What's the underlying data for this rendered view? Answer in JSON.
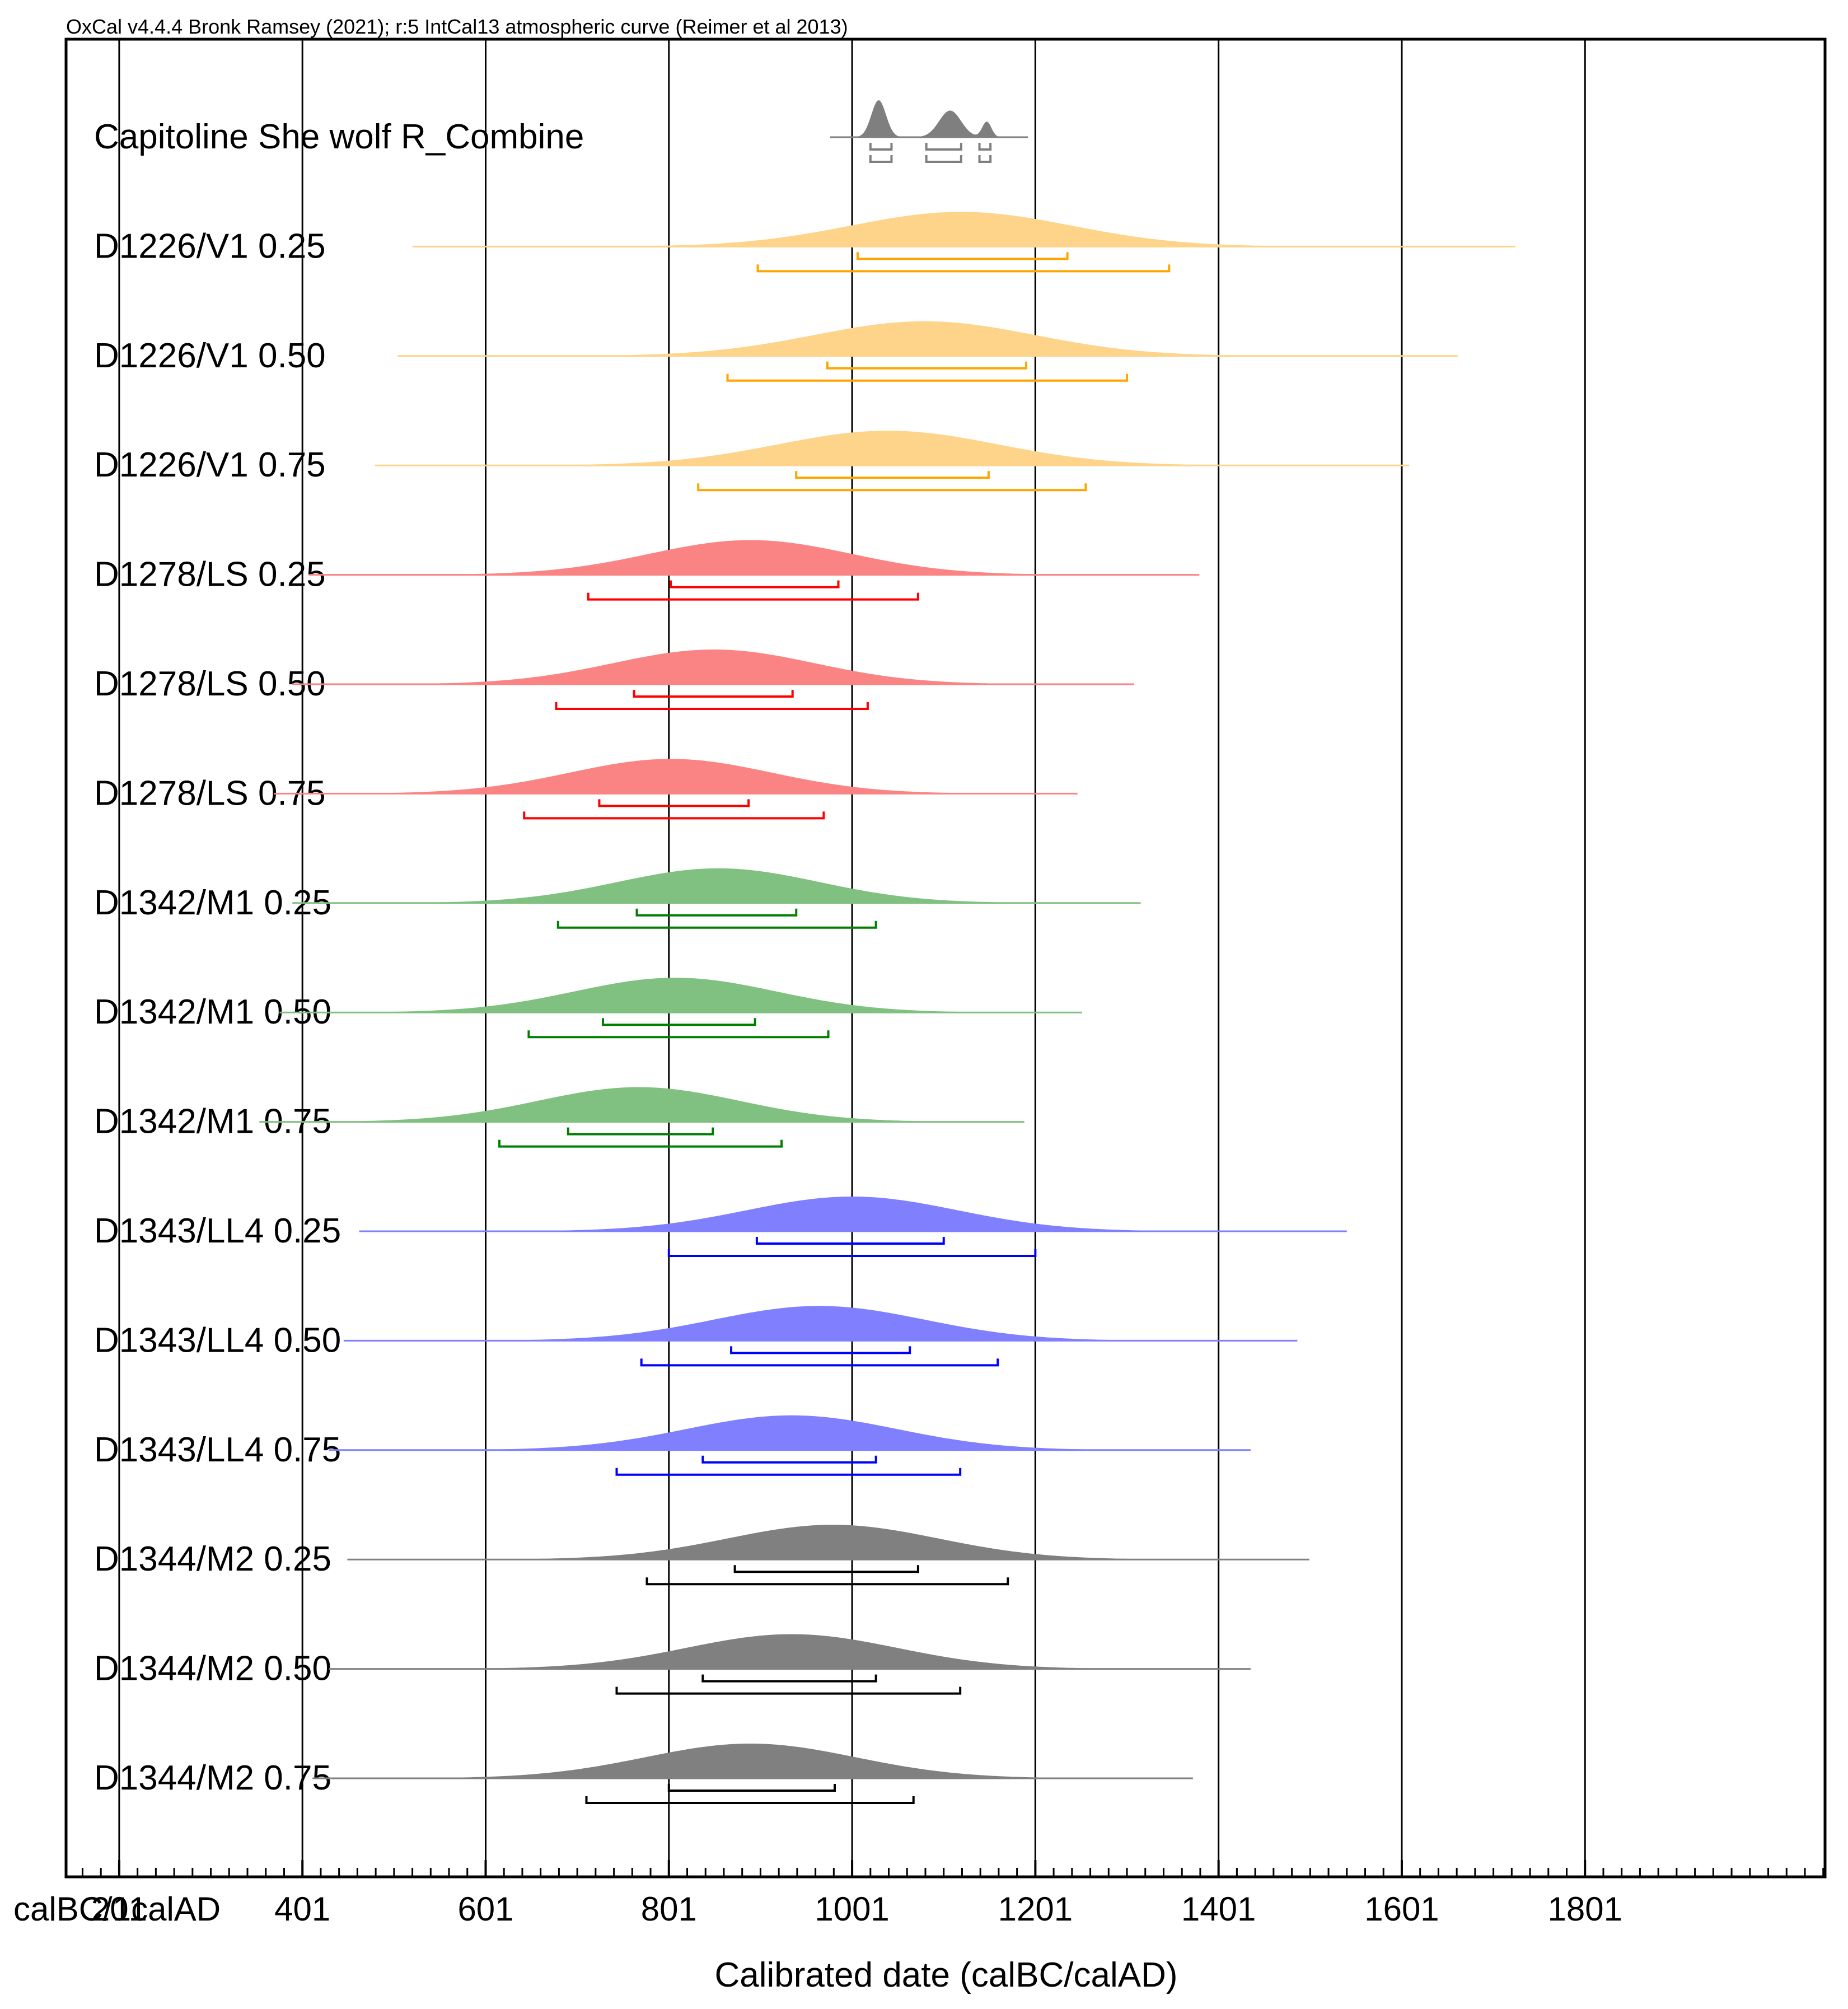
{
  "header": "OxCal v4.4.4 Bronk Ramsey (2021); r:5 IntCal13 atmospheric curve (Reimer et al 2013)",
  "chart_data": {
    "type": "ridgeline",
    "title": "OxCal v4.4.4 Bronk Ramsey (2021); r:5 IntCal13 atmospheric curve (Reimer et al 2013)",
    "xlabel": "Calibrated date (calBC/calAD)",
    "xlim": [
      143,
      2063
    ],
    "xticks": [
      {
        "value": 143,
        "label": "calBC/1calAD"
      },
      {
        "value": 201,
        "label": "201"
      },
      {
        "value": 401,
        "label": "401"
      },
      {
        "value": 601,
        "label": "601"
      },
      {
        "value": 801,
        "label": "801"
      },
      {
        "value": 1001,
        "label": "1001"
      },
      {
        "value": 1201,
        "label": "1201"
      },
      {
        "value": 1401,
        "label": "1401"
      },
      {
        "value": 1601,
        "label": "1601"
      },
      {
        "value": 1801,
        "label": "1801"
      }
    ],
    "gridlines": [
      201,
      401,
      601,
      801,
      1001,
      1201,
      1401,
      1601,
      1801
    ],
    "minor_tick_step": 20,
    "series": [
      {
        "name": "Capitoline She wolf R_Combine",
        "color": "#7f7f7f",
        "kind": "combine",
        "range": [
          977,
          1193
        ],
        "peaks": [
          [
            1030,
            8,
            1.0
          ],
          [
            1108,
            12,
            0.72
          ],
          [
            1148,
            5,
            0.42
          ]
        ],
        "hpd68": [
          [
            1021,
            1044
          ],
          [
            1082,
            1120
          ],
          [
            1140,
            1152
          ]
        ],
        "hpd95": [
          [
            1021,
            1044
          ],
          [
            1082,
            1120
          ],
          [
            1140,
            1152
          ]
        ]
      },
      {
        "name": "D1226/V1 0.25",
        "color": "#ffa500",
        "fill": "#fdd48a",
        "range": [
          521,
          1725
        ],
        "mode": 1120,
        "sigma": 120,
        "hpd68": [
          1007,
          1236
        ],
        "hpd95": [
          898,
          1347
        ]
      },
      {
        "name": "D1226/V1 0.50",
        "color": "#ffa500",
        "fill": "#fdd48a",
        "range": [
          505,
          1662
        ],
        "mode": 1080,
        "sigma": 120,
        "hpd68": [
          974,
          1191
        ],
        "hpd95": [
          865,
          1301
        ]
      },
      {
        "name": "D1226/V1 0.75",
        "color": "#ffa500",
        "fill": "#fdd48a",
        "range": [
          480,
          1609
        ],
        "mode": 1040,
        "sigma": 120,
        "hpd68": [
          940,
          1150
        ],
        "hpd95": [
          833,
          1256
        ]
      },
      {
        "name": "D1278/LS 0.25",
        "color": "#ff0000",
        "fill": "#fa8484",
        "range": [
          408,
          1380
        ],
        "mode": 890,
        "sigma": 110,
        "hpd68": [
          803,
          986
        ],
        "hpd95": [
          713,
          1073
        ]
      },
      {
        "name": "D1278/LS 0.50",
        "color": "#ff0000",
        "fill": "#fa8484",
        "range": [
          390,
          1309
        ],
        "mode": 850,
        "sigma": 110,
        "hpd68": [
          763,
          936
        ],
        "hpd95": [
          678,
          1018
        ]
      },
      {
        "name": "D1278/LS 0.75",
        "color": "#ff0000",
        "fill": "#fa8484",
        "range": [
          370,
          1247
        ],
        "mode": 803,
        "sigma": 110,
        "hpd68": [
          725,
          888
        ],
        "hpd95": [
          643,
          970
        ]
      },
      {
        "name": "D1342/M1 0.25",
        "color": "#008000",
        "fill": "#80c080",
        "range": [
          390,
          1316
        ],
        "mode": 855,
        "sigma": 110,
        "hpd68": [
          766,
          940
        ],
        "hpd95": [
          680,
          1027
        ]
      },
      {
        "name": "D1342/M1 0.50",
        "color": "#008000",
        "fill": "#80c080",
        "range": [
          376,
          1252
        ],
        "mode": 808,
        "sigma": 110,
        "hpd68": [
          729,
          895
        ],
        "hpd95": [
          648,
          975
        ]
      },
      {
        "name": "D1342/M1 0.75",
        "color": "#008000",
        "fill": "#80c080",
        "range": [
          354,
          1189
        ],
        "mode": 768,
        "sigma": 110,
        "hpd68": [
          691,
          849
        ],
        "hpd95": [
          616,
          924
        ]
      },
      {
        "name": "D1343/LL4 0.25",
        "color": "#0000ff",
        "fill": "#8080ff",
        "range": [
          463,
          1541
        ],
        "mode": 1001,
        "sigma": 115,
        "hpd68": [
          897,
          1101
        ],
        "hpd95": [
          801,
          1201
        ]
      },
      {
        "name": "D1343/LL4 0.50",
        "color": "#0000ff",
        "fill": "#8080ff",
        "range": [
          446,
          1487
        ],
        "mode": 965,
        "sigma": 115,
        "hpd68": [
          869,
          1064
        ],
        "hpd95": [
          771,
          1160
        ]
      },
      {
        "name": "D1343/LL4 0.75",
        "color": "#0000ff",
        "fill": "#8080ff",
        "range": [
          430,
          1436
        ],
        "mode": 935,
        "sigma": 115,
        "hpd68": [
          838,
          1027
        ],
        "hpd95": [
          744,
          1119
        ]
      },
      {
        "name": "D1344/M2 0.25",
        "color": "#000000",
        "fill": "#808080",
        "range": [
          450,
          1500
        ],
        "mode": 980,
        "sigma": 115,
        "hpd68": [
          873,
          1073
        ],
        "hpd95": [
          777,
          1171
        ]
      },
      {
        "name": "D1344/M2 0.50",
        "color": "#000000",
        "fill": "#808080",
        "range": [
          430,
          1436
        ],
        "mode": 935,
        "sigma": 115,
        "hpd68": [
          838,
          1027
        ],
        "hpd95": [
          744,
          1119
        ]
      },
      {
        "name": "D1344/M2 0.75",
        "color": "#000000",
        "fill": "#808080",
        "range": [
          412,
          1373
        ],
        "mode": 890,
        "sigma": 115,
        "hpd68": [
          801,
          982
        ],
        "hpd95": [
          711,
          1068
        ]
      }
    ]
  }
}
